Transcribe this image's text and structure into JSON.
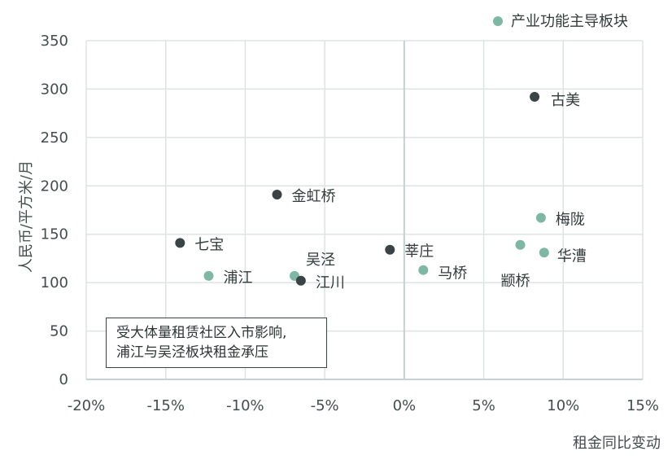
{
  "chart_data": {
    "type": "scatter",
    "xlabel": "租金同比变动",
    "ylabel": "人民币/平方米/月",
    "xlim": [
      -0.2,
      0.15
    ],
    "ylim": [
      0,
      350
    ],
    "x_ticks": [
      -0.2,
      -0.15,
      -0.1,
      -0.05,
      0,
      0.05,
      0.1,
      0.15
    ],
    "x_tick_labels": [
      "-20%",
      "-15%",
      "-10%",
      "-5%",
      "0%",
      "5%",
      "10%",
      "15%"
    ],
    "y_ticks": [
      0,
      50,
      100,
      150,
      200,
      250,
      300,
      350
    ],
    "y_tick_labels": [
      "0",
      "50",
      "100",
      "150",
      "200",
      "250",
      "300",
      "350"
    ],
    "grid": true,
    "legend_position": "top-right",
    "colors": {
      "industry": "#7fb7a5",
      "other": "#3a4446",
      "grid": "#dde3e3",
      "zero_line": "#c3d0d0"
    },
    "series": [
      {
        "name": "产业功能主导板块",
        "color_key": "industry",
        "points": [
          {
            "label": "梅陇",
            "x": 0.086,
            "y": 167
          },
          {
            "label": "华漕",
            "x": 0.088,
            "y": 131
          },
          {
            "label": "颛桥",
            "x": 0.073,
            "y": 139
          },
          {
            "label": "马桥",
            "x": 0.012,
            "y": 113
          },
          {
            "label": "吴泾",
            "x": -0.069,
            "y": 107
          },
          {
            "label": "浦江",
            "x": -0.123,
            "y": 107
          }
        ]
      },
      {
        "name": "",
        "color_key": "other",
        "points": [
          {
            "label": "古美",
            "x": 0.082,
            "y": 292
          },
          {
            "label": "金虹桥",
            "x": -0.08,
            "y": 191
          },
          {
            "label": "七宝",
            "x": -0.141,
            "y": 141
          },
          {
            "label": "莘庄",
            "x": -0.009,
            "y": 134
          },
          {
            "label": "江川",
            "x": -0.065,
            "y": 102
          }
        ]
      }
    ]
  },
  "annotation": {
    "line1": "受大体量租赁社区入市影响,",
    "line2": "浦江与吴泾板块租金承压"
  }
}
